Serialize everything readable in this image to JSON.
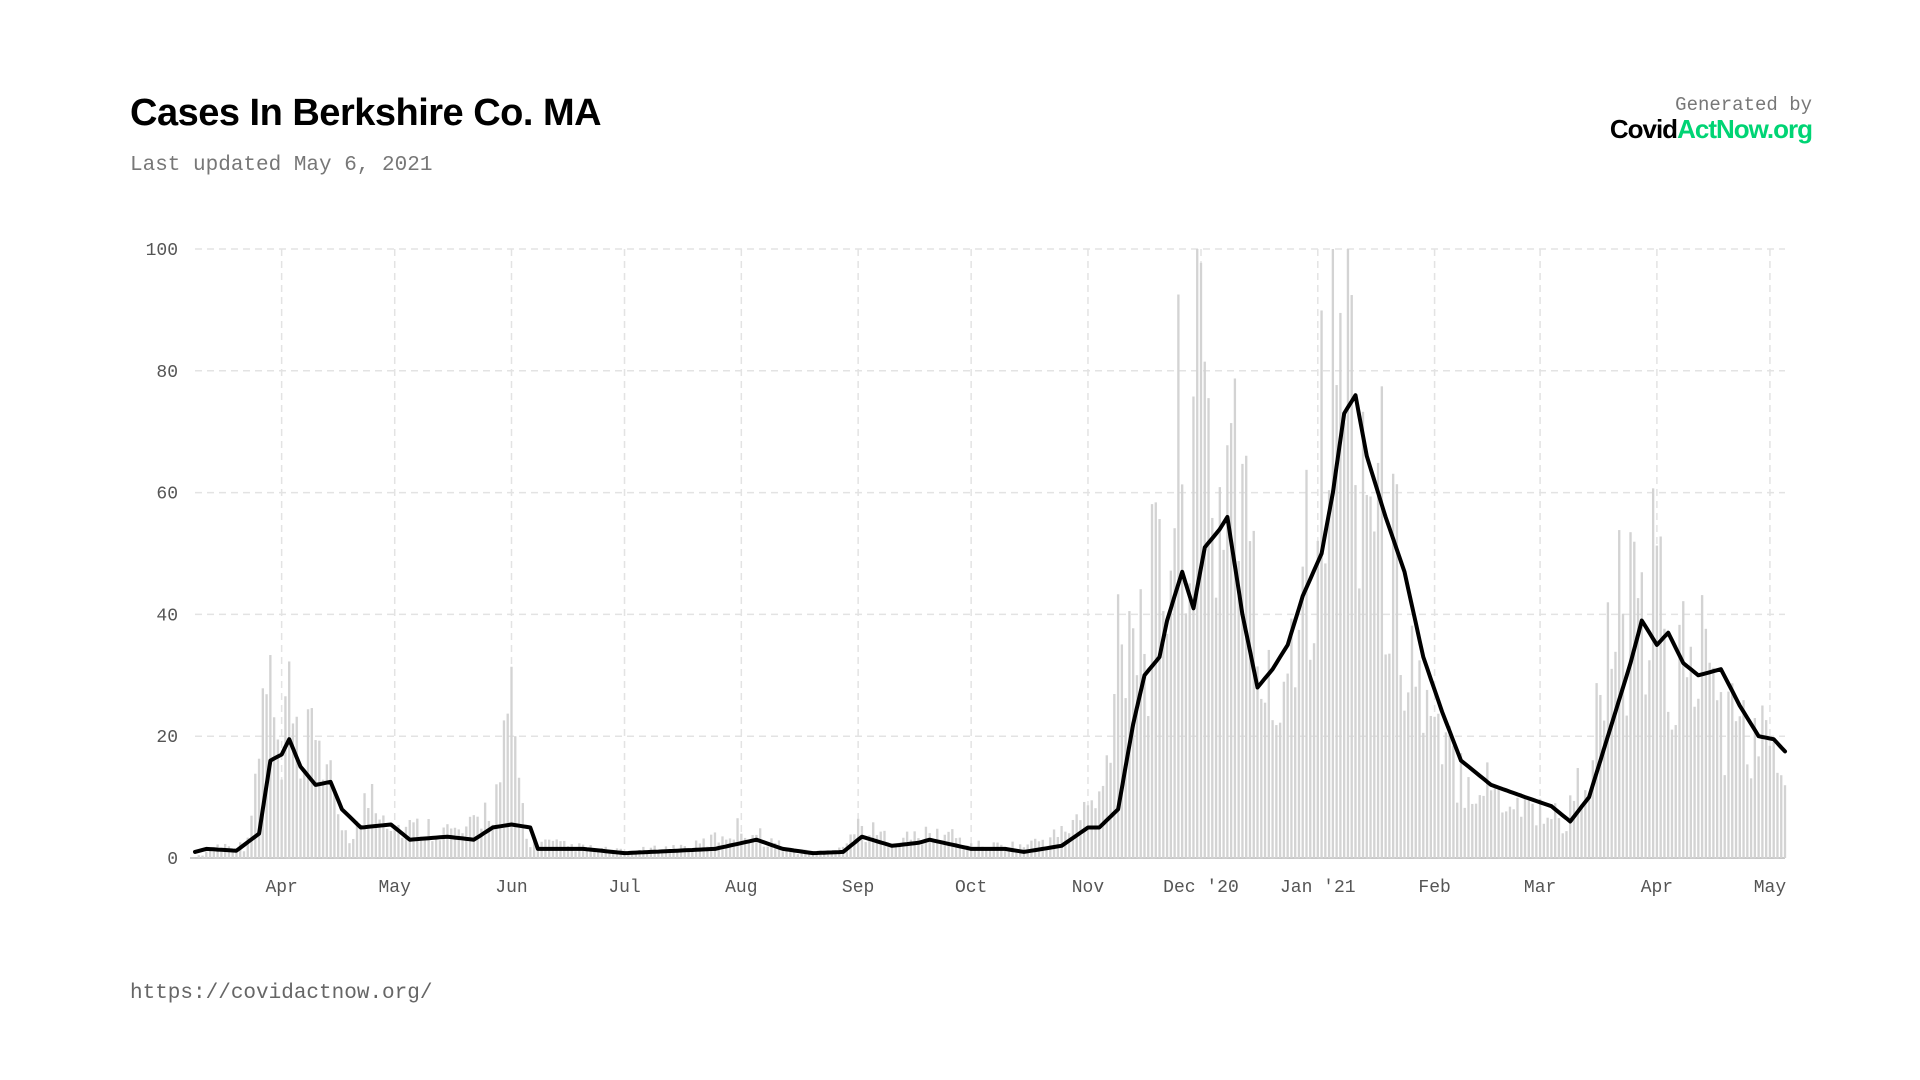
{
  "header": {
    "title": "Cases In Berkshire Co. MA",
    "updated": "Last updated May 6, 2021",
    "generated_by": "Generated by",
    "logo_a": "Covid",
    "logo_b": "ActNow.org"
  },
  "footer": {
    "url": "https://covidactnow.org/"
  },
  "colors": {
    "accent": "#00d474",
    "line": "#000000",
    "bar": "#d3d3d3",
    "grid": "#e3e3e3"
  },
  "chart_data": {
    "type": "bar",
    "title": "Cases In Berkshire Co. MA",
    "x_start": "2020-03-09",
    "x_end": "2021-05-05",
    "ylim": [
      0,
      100
    ],
    "yticks": [
      0,
      20,
      40,
      60,
      80,
      100
    ],
    "grid": true,
    "xticks": [
      {
        "label": "Apr",
        "date": "2020-04-01"
      },
      {
        "label": "May",
        "date": "2020-05-01"
      },
      {
        "label": "Jun",
        "date": "2020-06-01"
      },
      {
        "label": "Jul",
        "date": "2020-07-01"
      },
      {
        "label": "Aug",
        "date": "2020-08-01"
      },
      {
        "label": "Sep",
        "date": "2020-09-01"
      },
      {
        "label": "Oct",
        "date": "2020-10-01"
      },
      {
        "label": "Nov",
        "date": "2020-11-01"
      },
      {
        "label": "Dec '20",
        "date": "2020-12-01"
      },
      {
        "label": "Jan '21",
        "date": "2021-01-01"
      },
      {
        "label": "Feb",
        "date": "2021-02-01"
      },
      {
        "label": "Mar",
        "date": "2021-03-01"
      },
      {
        "label": "Apr",
        "date": "2021-04-01"
      },
      {
        "label": "May",
        "date": "2021-05-01"
      }
    ],
    "daily_cases_keypoints": [
      [
        "2020-03-09",
        0
      ],
      [
        "2020-03-15",
        2
      ],
      [
        "2020-03-22",
        2
      ],
      [
        "2020-03-25",
        10
      ],
      [
        "2020-03-28",
        32
      ],
      [
        "2020-04-01",
        12
      ],
      [
        "2020-04-03",
        28
      ],
      [
        "2020-04-06",
        10
      ],
      [
        "2020-04-10",
        24
      ],
      [
        "2020-04-15",
        8
      ],
      [
        "2020-04-20",
        3
      ],
      [
        "2020-04-25",
        12
      ],
      [
        "2020-05-01",
        5
      ],
      [
        "2020-05-10",
        5
      ],
      [
        "2020-05-20",
        4
      ],
      [
        "2020-05-28",
        10
      ],
      [
        "2020-06-01",
        23
      ],
      [
        "2020-06-05",
        3
      ],
      [
        "2020-06-15",
        2
      ],
      [
        "2020-07-01",
        1
      ],
      [
        "2020-07-20",
        2
      ],
      [
        "2020-08-01",
        5
      ],
      [
        "2020-08-15",
        1
      ],
      [
        "2020-08-25",
        1
      ],
      [
        "2020-09-01",
        5
      ],
      [
        "2020-09-10",
        3
      ],
      [
        "2020-09-25",
        4
      ],
      [
        "2020-10-01",
        2
      ],
      [
        "2020-10-15",
        2
      ],
      [
        "2020-10-25",
        4
      ],
      [
        "2020-11-01",
        8
      ],
      [
        "2020-11-05",
        10
      ],
      [
        "2020-11-10",
        45
      ],
      [
        "2020-11-15",
        38
      ],
      [
        "2020-11-20",
        42
      ],
      [
        "2020-11-25",
        65
      ],
      [
        "2020-12-01",
        80
      ],
      [
        "2020-12-05",
        55
      ],
      [
        "2020-12-10",
        75
      ],
      [
        "2020-12-15",
        40
      ],
      [
        "2020-12-20",
        22
      ],
      [
        "2020-12-25",
        40
      ],
      [
        "2020-12-30",
        58
      ],
      [
        "2021-01-03",
        70
      ],
      [
        "2021-01-08",
        88
      ],
      [
        "2021-01-13",
        70
      ],
      [
        "2021-01-18",
        55
      ],
      [
        "2021-01-23",
        42
      ],
      [
        "2021-01-28",
        28
      ],
      [
        "2021-02-01",
        18
      ],
      [
        "2021-02-10",
        14
      ],
      [
        "2021-02-20",
        10
      ],
      [
        "2021-03-01",
        8
      ],
      [
        "2021-03-08",
        6
      ],
      [
        "2021-03-15",
        18
      ],
      [
        "2021-03-22",
        40
      ],
      [
        "2021-03-28",
        35
      ],
      [
        "2021-04-01",
        45
      ],
      [
        "2021-04-05",
        28
      ],
      [
        "2021-04-10",
        36
      ],
      [
        "2021-04-15",
        30
      ],
      [
        "2021-04-20",
        22
      ],
      [
        "2021-04-25",
        20
      ],
      [
        "2021-05-01",
        18
      ],
      [
        "2021-05-05",
        14
      ]
    ],
    "avg_keypoints": [
      [
        "2020-03-09",
        1
      ],
      [
        "2020-03-12",
        1.5
      ],
      [
        "2020-03-20",
        1.2
      ],
      [
        "2020-03-26",
        4
      ],
      [
        "2020-03-29",
        16
      ],
      [
        "2020-04-01",
        17
      ],
      [
        "2020-04-03",
        19.5
      ],
      [
        "2020-04-06",
        15
      ],
      [
        "2020-04-10",
        12
      ],
      [
        "2020-04-14",
        12.5
      ],
      [
        "2020-04-17",
        8
      ],
      [
        "2020-04-22",
        5
      ],
      [
        "2020-04-30",
        5.5
      ],
      [
        "2020-05-05",
        3
      ],
      [
        "2020-05-15",
        3.5
      ],
      [
        "2020-05-22",
        3
      ],
      [
        "2020-05-27",
        5
      ],
      [
        "2020-06-01",
        5.5
      ],
      [
        "2020-06-06",
        5
      ],
      [
        "2020-06-08",
        1.5
      ],
      [
        "2020-06-20",
        1.5
      ],
      [
        "2020-07-01",
        0.8
      ],
      [
        "2020-07-15",
        1.2
      ],
      [
        "2020-07-25",
        1.5
      ],
      [
        "2020-08-05",
        3
      ],
      [
        "2020-08-12",
        1.5
      ],
      [
        "2020-08-20",
        0.8
      ],
      [
        "2020-08-28",
        1
      ],
      [
        "2020-09-02",
        3.5
      ],
      [
        "2020-09-10",
        2
      ],
      [
        "2020-09-17",
        2.5
      ],
      [
        "2020-09-20",
        3
      ],
      [
        "2020-10-01",
        1.5
      ],
      [
        "2020-10-10",
        1.5
      ],
      [
        "2020-10-15",
        1
      ],
      [
        "2020-10-25",
        2
      ],
      [
        "2020-11-01",
        5
      ],
      [
        "2020-11-04",
        5
      ],
      [
        "2020-11-09",
        8
      ],
      [
        "2020-11-13",
        22
      ],
      [
        "2020-11-16",
        30
      ],
      [
        "2020-11-20",
        33
      ],
      [
        "2020-11-22",
        39
      ],
      [
        "2020-11-26",
        47
      ],
      [
        "2020-11-29",
        41
      ],
      [
        "2020-12-02",
        51
      ],
      [
        "2020-12-06",
        54
      ],
      [
        "2020-12-08",
        56
      ],
      [
        "2020-12-12",
        40
      ],
      [
        "2020-12-16",
        28
      ],
      [
        "2020-12-20",
        31
      ],
      [
        "2020-12-24",
        35
      ],
      [
        "2020-12-28",
        43
      ],
      [
        "2021-01-02",
        50
      ],
      [
        "2021-01-05",
        60
      ],
      [
        "2021-01-08",
        73
      ],
      [
        "2021-01-11",
        76
      ],
      [
        "2021-01-14",
        66
      ],
      [
        "2021-01-19",
        56
      ],
      [
        "2021-01-24",
        47
      ],
      [
        "2021-01-29",
        33
      ],
      [
        "2021-02-03",
        24
      ],
      [
        "2021-02-08",
        16
      ],
      [
        "2021-02-16",
        12
      ],
      [
        "2021-02-25",
        10
      ],
      [
        "2021-03-04",
        8.5
      ],
      [
        "2021-03-09",
        6
      ],
      [
        "2021-03-14",
        10
      ],
      [
        "2021-03-19",
        20
      ],
      [
        "2021-03-25",
        32
      ],
      [
        "2021-03-28",
        39
      ],
      [
        "2021-04-01",
        35
      ],
      [
        "2021-04-04",
        37
      ],
      [
        "2021-04-08",
        32
      ],
      [
        "2021-04-12",
        30
      ],
      [
        "2021-04-18",
        31
      ],
      [
        "2021-04-23",
        25
      ],
      [
        "2021-04-28",
        20
      ],
      [
        "2021-05-02",
        19.5
      ],
      [
        "2021-05-05",
        17.5
      ]
    ]
  }
}
